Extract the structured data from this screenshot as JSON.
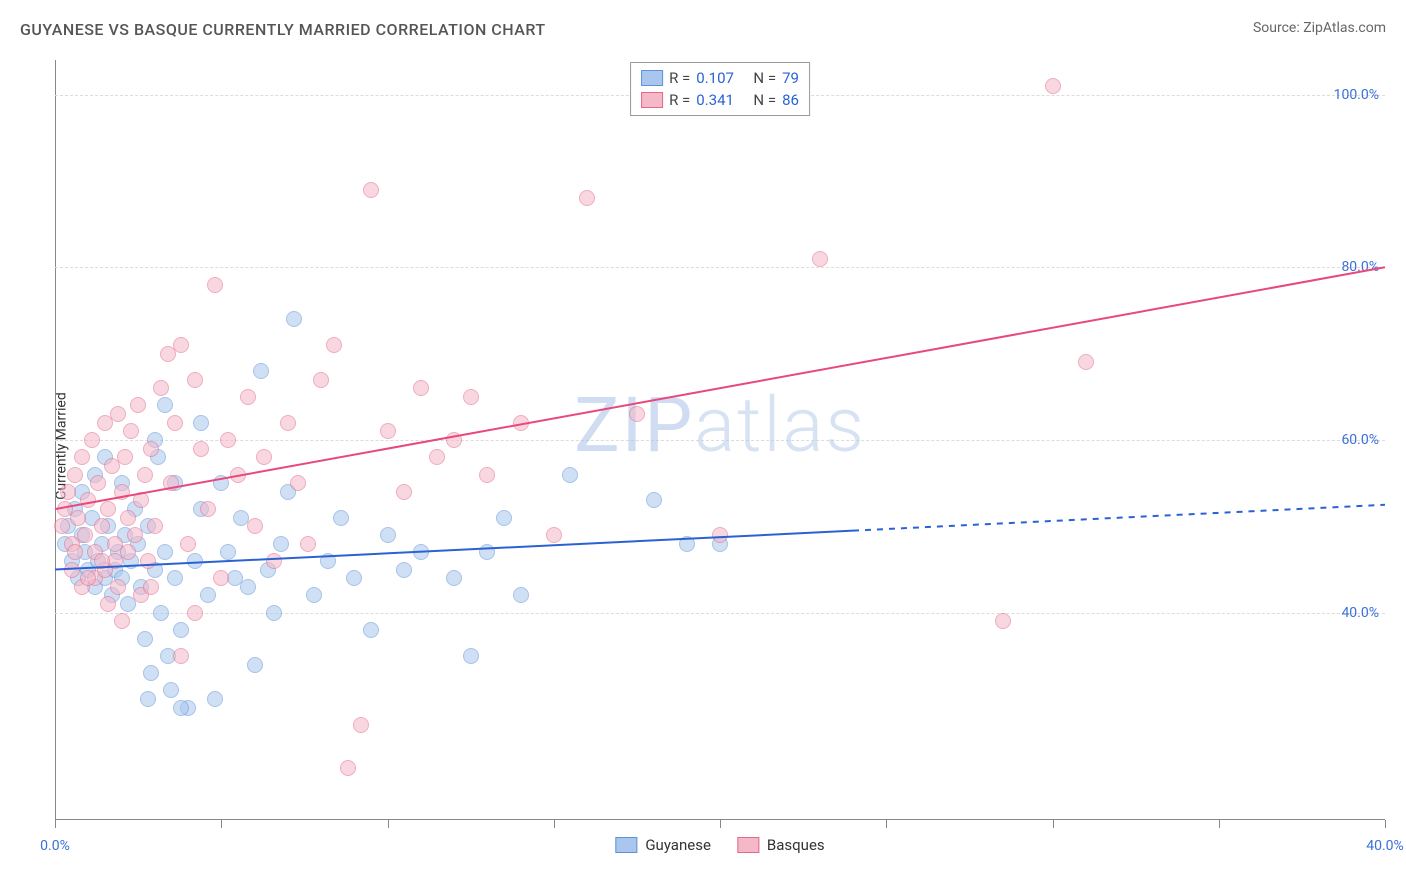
{
  "title": "GUYANESE VS BASQUE CURRENTLY MARRIED CORRELATION CHART",
  "source": "Source: ZipAtlas.com",
  "watermark_bold": "ZIP",
  "watermark_thin": "atlas",
  "y_axis_title": "Currently Married",
  "chart": {
    "type": "scatter",
    "x_min": 0,
    "x_max": 40,
    "y_min": 16,
    "y_max": 104,
    "y_gridlines": [
      40,
      60,
      80,
      100
    ],
    "y_tick_labels": [
      "40.0%",
      "60.0%",
      "80.0%",
      "100.0%"
    ],
    "x_ticks": [
      0,
      5,
      10,
      15,
      20,
      25,
      30,
      35,
      40
    ],
    "x_tick_labels": {
      "0": "0.0%",
      "40": "40.0%"
    },
    "background_color": "#ffffff",
    "grid_color": "#dcdcdc",
    "axis_color": "#888888",
    "tick_label_color": "#3b6fd8",
    "point_radius": 8,
    "point_opacity": 0.55,
    "series": [
      {
        "name": "Guyanese",
        "fill": "#a9c7ee",
        "stroke": "#5f93d8",
        "trend": {
          "x1": 0,
          "y1": 45,
          "x2": 24,
          "y2": 49.5,
          "dash_from_x": 24,
          "x3": 40,
          "y3": 52.5,
          "color": "#2a62d4",
          "width": 2
        },
        "r_label": "R =",
        "r_value": "0.107",
        "n_label": "N =",
        "n_value": "79",
        "points": [
          [
            0.3,
            48
          ],
          [
            0.4,
            50
          ],
          [
            0.5,
            46
          ],
          [
            0.6,
            52
          ],
          [
            0.7,
            44
          ],
          [
            0.8,
            49
          ],
          [
            0.9,
            47
          ],
          [
            1.0,
            45
          ],
          [
            1.1,
            51
          ],
          [
            1.2,
            43
          ],
          [
            1.3,
            46
          ],
          [
            1.4,
            48
          ],
          [
            1.5,
            44
          ],
          [
            1.6,
            50
          ],
          [
            1.7,
            42
          ],
          [
            1.8,
            45
          ],
          [
            0.8,
            54
          ],
          [
            1.2,
            56
          ],
          [
            1.5,
            58
          ],
          [
            1.9,
            47
          ],
          [
            2.0,
            44
          ],
          [
            2.1,
            49
          ],
          [
            2.2,
            41
          ],
          [
            2.3,
            46
          ],
          [
            2.4,
            52
          ],
          [
            2.5,
            48
          ],
          [
            2.0,
            55
          ],
          [
            2.6,
            43
          ],
          [
            2.7,
            37
          ],
          [
            2.8,
            50
          ],
          [
            2.9,
            33
          ],
          [
            3.0,
            45
          ],
          [
            3.1,
            58
          ],
          [
            3.2,
            40
          ],
          [
            3.3,
            47
          ],
          [
            3.4,
            35
          ],
          [
            3.5,
            31
          ],
          [
            3.6,
            44
          ],
          [
            3.8,
            38
          ],
          [
            4.0,
            29
          ],
          [
            4.2,
            46
          ],
          [
            4.4,
            52
          ],
          [
            4.6,
            42
          ],
          [
            4.8,
            30
          ],
          [
            5.0,
            55
          ],
          [
            5.2,
            47
          ],
          [
            5.4,
            44
          ],
          [
            5.6,
            51
          ],
          [
            5.8,
            43
          ],
          [
            6.0,
            34
          ],
          [
            6.2,
            68
          ],
          [
            6.4,
            45
          ],
          [
            6.6,
            40
          ],
          [
            6.8,
            48
          ],
          [
            7.0,
            54
          ],
          [
            7.2,
            74
          ],
          [
            3.3,
            64
          ],
          [
            4.4,
            62
          ],
          [
            3.0,
            60
          ],
          [
            3.6,
            55
          ],
          [
            7.8,
            42
          ],
          [
            8.2,
            46
          ],
          [
            8.6,
            51
          ],
          [
            9.0,
            44
          ],
          [
            9.5,
            38
          ],
          [
            10.0,
            49
          ],
          [
            10.5,
            45
          ],
          [
            11.0,
            47
          ],
          [
            12.0,
            44
          ],
          [
            12.5,
            35
          ],
          [
            13.0,
            47
          ],
          [
            13.5,
            51
          ],
          [
            14.0,
            42
          ],
          [
            15.5,
            56
          ],
          [
            18.0,
            53
          ],
          [
            19.0,
            48
          ],
          [
            20.0,
            48
          ],
          [
            2.8,
            30
          ],
          [
            3.8,
            29
          ]
        ]
      },
      {
        "name": "Basques",
        "fill": "#f4b8c8",
        "stroke": "#e26a8a",
        "trend": {
          "x1": 0,
          "y1": 52,
          "x2": 40,
          "y2": 80,
          "dash_from_x": 40,
          "x3": 40,
          "y3": 80,
          "color": "#e8487b",
          "width": 2
        },
        "r_label": "R =",
        "r_value": "0.341",
        "n_label": "N =",
        "n_value": "86",
        "points": [
          [
            0.2,
            50
          ],
          [
            0.3,
            52
          ],
          [
            0.4,
            54
          ],
          [
            0.5,
            48
          ],
          [
            0.6,
            56
          ],
          [
            0.7,
            51
          ],
          [
            0.8,
            58
          ],
          [
            0.9,
            49
          ],
          [
            1.0,
            53
          ],
          [
            1.1,
            60
          ],
          [
            1.2,
            47
          ],
          [
            1.3,
            55
          ],
          [
            1.4,
            50
          ],
          [
            1.5,
            62
          ],
          [
            1.6,
            52
          ],
          [
            1.7,
            57
          ],
          [
            1.8,
            48
          ],
          [
            1.9,
            63
          ],
          [
            2.0,
            54
          ],
          [
            2.1,
            58
          ],
          [
            2.2,
            51
          ],
          [
            2.3,
            61
          ],
          [
            2.4,
            49
          ],
          [
            2.5,
            64
          ],
          [
            2.6,
            53
          ],
          [
            2.7,
            56
          ],
          [
            2.8,
            46
          ],
          [
            2.9,
            59
          ],
          [
            3.0,
            50
          ],
          [
            3.2,
            66
          ],
          [
            3.4,
            70
          ],
          [
            3.5,
            55
          ],
          [
            3.6,
            62
          ],
          [
            3.8,
            71
          ],
          [
            4.0,
            48
          ],
          [
            4.2,
            67
          ],
          [
            4.4,
            59
          ],
          [
            4.6,
            52
          ],
          [
            4.8,
            78
          ],
          [
            5.0,
            44
          ],
          [
            5.2,
            60
          ],
          [
            5.5,
            56
          ],
          [
            5.8,
            65
          ],
          [
            6.0,
            50
          ],
          [
            6.3,
            58
          ],
          [
            6.6,
            46
          ],
          [
            7.0,
            62
          ],
          [
            7.3,
            55
          ],
          [
            7.6,
            48
          ],
          [
            8.0,
            67
          ],
          [
            8.4,
            71
          ],
          [
            8.8,
            22
          ],
          [
            9.2,
            27
          ],
          [
            9.5,
            89
          ],
          [
            3.8,
            35
          ],
          [
            4.2,
            40
          ],
          [
            2.6,
            42
          ],
          [
            2.0,
            39
          ],
          [
            1.6,
            41
          ],
          [
            10.0,
            61
          ],
          [
            10.5,
            54
          ],
          [
            11.0,
            66
          ],
          [
            11.5,
            58
          ],
          [
            12.0,
            60
          ],
          [
            12.5,
            65
          ],
          [
            13.0,
            56
          ],
          [
            14.0,
            62
          ],
          [
            15.0,
            49
          ],
          [
            16.0,
            88
          ],
          [
            17.5,
            63
          ],
          [
            20.0,
            49
          ],
          [
            23.0,
            81
          ],
          [
            28.5,
            39
          ],
          [
            30.0,
            101
          ],
          [
            31.0,
            69
          ],
          [
            0.5,
            45
          ],
          [
            1.2,
            44
          ],
          [
            1.8,
            46
          ],
          [
            0.8,
            43
          ],
          [
            1.5,
            45
          ],
          [
            2.2,
            47
          ],
          [
            2.9,
            43
          ],
          [
            0.6,
            47
          ],
          [
            1.0,
            44
          ],
          [
            1.4,
            46
          ],
          [
            1.9,
            43
          ]
        ]
      }
    ]
  },
  "legend_bottom": [
    {
      "name": "Guyanese",
      "fill": "#a9c7ee",
      "stroke": "#5f93d8"
    },
    {
      "name": "Basques",
      "fill": "#f4b8c8",
      "stroke": "#e26a8a"
    }
  ]
}
